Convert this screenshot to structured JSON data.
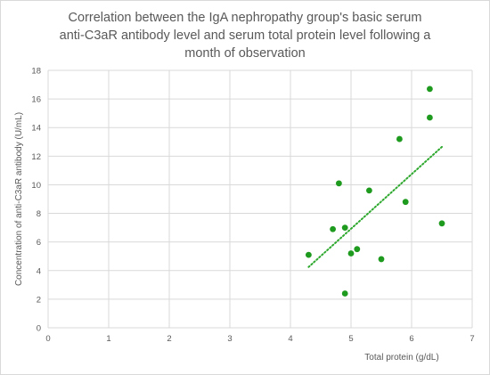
{
  "chart_data": {
    "type": "scatter",
    "title_lines": [
      "Correlation between the IgA nephropathy group's basic serum",
      "anti-C3aR antibody level and serum total protein level following a",
      "month of observation"
    ],
    "xlabel": "Total protein (g/dL)",
    "ylabel": "Concentration of anti-C3aR antibody (U/mL)",
    "xlim": [
      0,
      7
    ],
    "ylim": [
      0,
      18
    ],
    "x_ticks": [
      "0",
      "1",
      "2",
      "3",
      "4",
      "5",
      "6",
      "7"
    ],
    "y_ticks": [
      "0",
      "2",
      "4",
      "6",
      "8",
      "10",
      "12",
      "14",
      "16",
      "18"
    ],
    "grid": "vertical-and-horizontal",
    "trendline": {
      "type": "linear",
      "style": "dotted",
      "from": [
        4.3,
        4.25
      ],
      "to": [
        6.5,
        12.65
      ]
    },
    "colors": {
      "points": "#1e9a1e",
      "trendline": "#2ea82e",
      "grid": "#d9d9d9",
      "text": "#595959"
    },
    "points": [
      {
        "x": 4.3,
        "y": 5.1
      },
      {
        "x": 4.7,
        "y": 6.9
      },
      {
        "x": 4.8,
        "y": 10.1
      },
      {
        "x": 4.9,
        "y": 7.0
      },
      {
        "x": 4.9,
        "y": 2.4
      },
      {
        "x": 5.0,
        "y": 5.2
      },
      {
        "x": 5.1,
        "y": 5.5
      },
      {
        "x": 5.3,
        "y": 9.6
      },
      {
        "x": 5.5,
        "y": 4.8
      },
      {
        "x": 5.8,
        "y": 13.2
      },
      {
        "x": 5.9,
        "y": 8.8
      },
      {
        "x": 6.3,
        "y": 16.7
      },
      {
        "x": 6.3,
        "y": 14.7
      },
      {
        "x": 6.5,
        "y": 7.3
      }
    ]
  }
}
